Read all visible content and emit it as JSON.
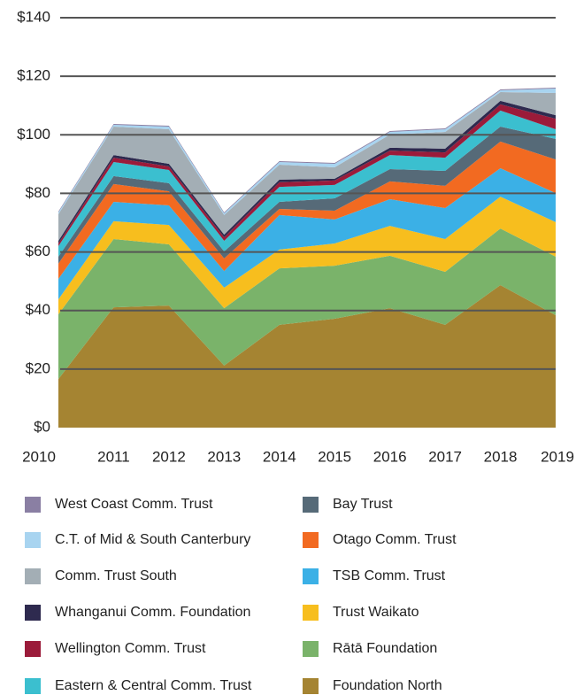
{
  "chart_data": {
    "type": "stacked_area",
    "categories": [
      "2010",
      "2011",
      "2012",
      "2013",
      "2014",
      "2015",
      "2016",
      "2017",
      "2018",
      "2019"
    ],
    "ylim": [
      0,
      140
    ],
    "yticks": [
      {
        "value": 0,
        "label": "$0"
      },
      {
        "value": 20,
        "label": "$20"
      },
      {
        "value": 40,
        "label": "$40"
      },
      {
        "value": 60,
        "label": "$60"
      },
      {
        "value": 80,
        "label": "$80"
      },
      {
        "value": 100,
        "label": "$100"
      },
      {
        "value": 120,
        "label": "$120"
      },
      {
        "value": 140,
        "label": "$140"
      }
    ],
    "grid": true,
    "series": [
      {
        "name": "Foundation North",
        "color": "#a58432",
        "values": [
          16.6,
          41.1,
          41.7,
          21.2,
          35.1,
          37.2,
          40.8,
          35.1,
          48.7,
          38.4
        ]
      },
      {
        "name": "Rātā Foundation",
        "color": "#7ab36a",
        "values": [
          22.1,
          23.3,
          20.9,
          19.6,
          19.3,
          18.1,
          17.9,
          18.1,
          19.3,
          20.0
        ]
      },
      {
        "name": "Trust Waikato",
        "color": "#f7be1e",
        "values": [
          5.1,
          6.1,
          6.6,
          7.0,
          6.4,
          7.6,
          10.2,
          11.2,
          10.9,
          11.8
        ]
      },
      {
        "name": "TSB Comm. Trust",
        "color": "#3bb0e6",
        "values": [
          7.0,
          6.6,
          6.7,
          5.7,
          11.8,
          8.2,
          9.1,
          10.6,
          9.7,
          9.9
        ]
      },
      {
        "name": "Otago Comm. Trust",
        "color": "#f26a21",
        "values": [
          5.2,
          6.1,
          4.8,
          4.3,
          2.1,
          3.0,
          6.1,
          7.6,
          9.1,
          11.5
        ]
      },
      {
        "name": "Bay Trust",
        "color": "#566a78",
        "values": [
          2.4,
          2.7,
          2.8,
          2.4,
          2.4,
          4.2,
          4.2,
          5.1,
          5.1,
          7.0
        ]
      },
      {
        "name": "Eastern & Central Comm. Trust",
        "color": "#3bbfcf",
        "values": [
          3.6,
          4.8,
          4.5,
          3.6,
          5.1,
          4.6,
          4.8,
          4.5,
          5.5,
          3.3
        ]
      },
      {
        "name": "Wellington Comm. Trust",
        "color": "#9b1b3a",
        "values": [
          0.9,
          1.5,
          1.2,
          1.2,
          1.6,
          1.5,
          1.5,
          1.8,
          2.1,
          3.6
        ]
      },
      {
        "name": "Whanganui Comm. Foundation",
        "color": "#2e2a4f",
        "values": [
          0.9,
          0.9,
          0.9,
          0.9,
          0.9,
          0.6,
          1.0,
          1.3,
          1.2,
          1.2
        ]
      },
      {
        "name": "Comm. Trust South",
        "color": "#a3aeb5",
        "values": [
          9.1,
          9.7,
          11.8,
          6.7,
          5.1,
          3.9,
          4.5,
          5.7,
          3.0,
          7.6
        ]
      },
      {
        "name": "C.T. of Mid & South Canterbury",
        "color": "#a8d4f0",
        "values": [
          0.6,
          0.6,
          0.9,
          0.6,
          0.9,
          1.2,
          0.9,
          0.9,
          0.6,
          1.5
        ]
      },
      {
        "name": "West Coast Comm. Trust",
        "color": "#8a7fa3",
        "values": [
          0.3,
          0.3,
          0.3,
          0.3,
          0.3,
          0.3,
          0.3,
          0.3,
          0.3,
          0.3
        ]
      }
    ]
  }
}
